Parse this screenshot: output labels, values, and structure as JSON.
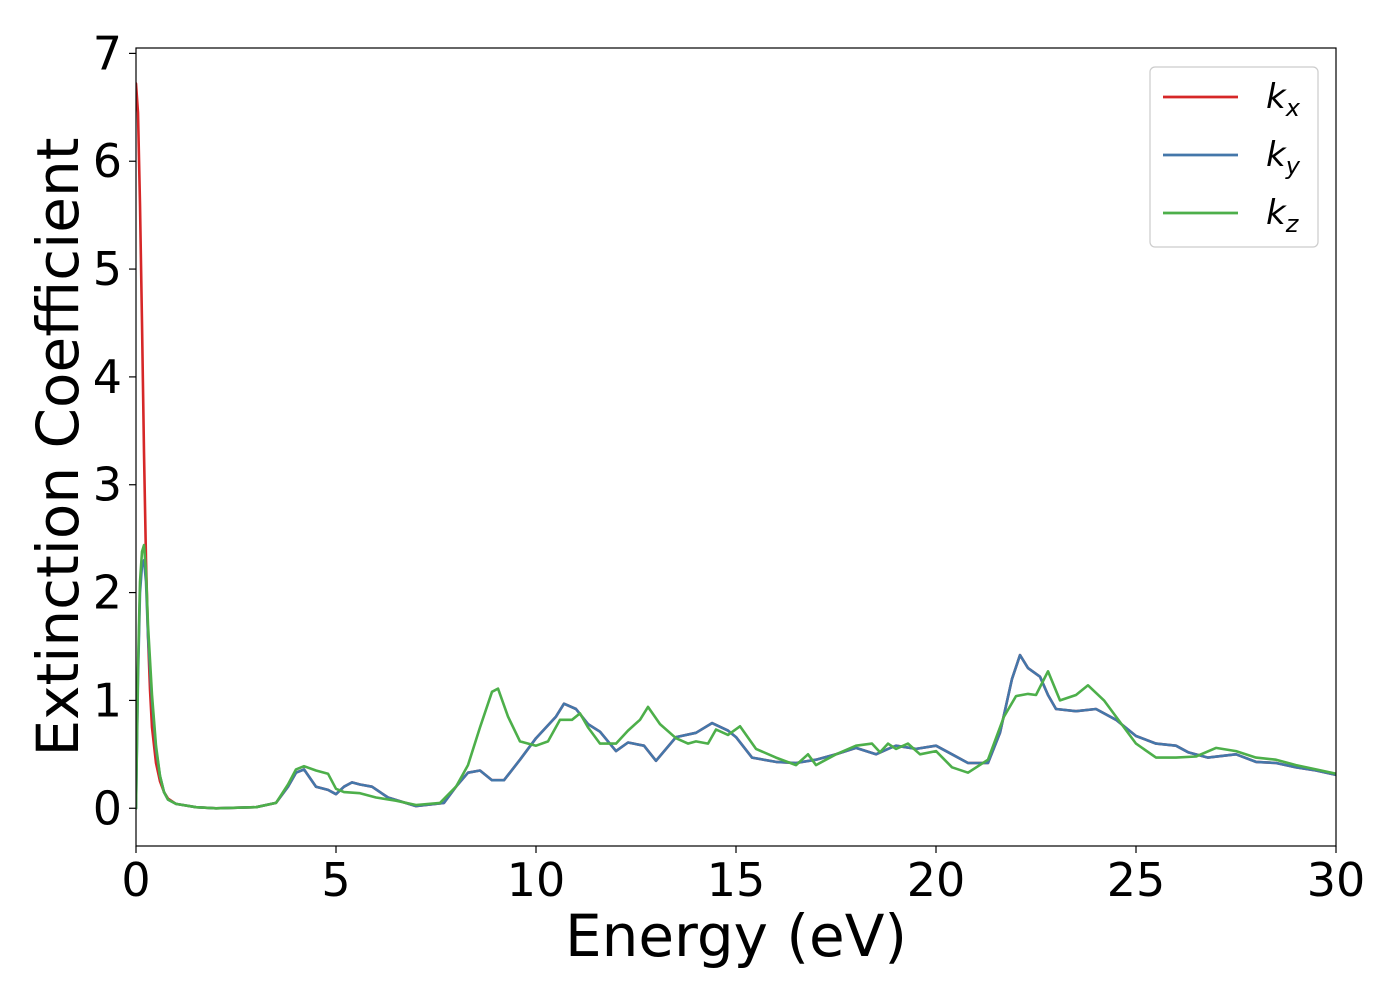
{
  "chart_data": {
    "type": "line",
    "title": "",
    "xlabel": "Energy (eV)",
    "ylabel": "Extinction Coefficient",
    "xlim": [
      0,
      30
    ],
    "ylim": [
      -0.35,
      7.05
    ],
    "xticks": [
      0,
      5,
      10,
      15,
      20,
      25,
      30
    ],
    "yticks": [
      0,
      1,
      2,
      3,
      4,
      5,
      6,
      7
    ],
    "xtick_labels": [
      "0",
      "5",
      "10",
      "15",
      "20",
      "25",
      "30"
    ],
    "ytick_labels": [
      "0",
      "1",
      "2",
      "3",
      "4",
      "5",
      "6",
      "7"
    ],
    "grid": false,
    "legend_position": "top-right",
    "series": [
      {
        "name": "k_x",
        "label_base": "k",
        "label_sub": "x",
        "color": "#d62728",
        "points": [
          [
            0.0,
            6.72
          ],
          [
            0.05,
            6.45
          ],
          [
            0.1,
            5.6
          ],
          [
            0.15,
            4.5
          ],
          [
            0.2,
            3.3
          ],
          [
            0.25,
            2.3
          ],
          [
            0.3,
            1.6
          ],
          [
            0.35,
            1.1
          ],
          [
            0.4,
            0.75
          ],
          [
            0.5,
            0.42
          ],
          [
            0.6,
            0.25
          ],
          [
            0.7,
            0.15
          ],
          [
            0.8,
            0.09
          ],
          [
            1.0,
            0.04
          ],
          [
            1.5,
            0.01
          ],
          [
            2.0,
            0.0
          ],
          [
            3.0,
            0.01
          ],
          [
            3.5,
            0.05
          ],
          [
            3.8,
            0.2
          ],
          [
            4.0,
            0.33
          ],
          [
            4.2,
            0.36
          ],
          [
            4.5,
            0.2
          ],
          [
            4.8,
            0.17
          ],
          [
            5.0,
            0.13
          ],
          [
            5.2,
            0.2
          ],
          [
            5.4,
            0.24
          ],
          [
            5.6,
            0.22
          ],
          [
            5.9,
            0.2
          ],
          [
            6.3,
            0.1
          ],
          [
            7.0,
            0.02
          ],
          [
            7.7,
            0.05
          ],
          [
            8.0,
            0.2
          ],
          [
            8.3,
            0.33
          ],
          [
            8.6,
            0.35
          ],
          [
            8.9,
            0.26
          ],
          [
            9.2,
            0.26
          ],
          [
            9.6,
            0.45
          ],
          [
            10.0,
            0.65
          ],
          [
            10.5,
            0.85
          ],
          [
            10.7,
            0.97
          ],
          [
            11.0,
            0.92
          ],
          [
            11.3,
            0.78
          ],
          [
            11.6,
            0.71
          ],
          [
            12.0,
            0.53
          ],
          [
            12.3,
            0.61
          ],
          [
            12.7,
            0.58
          ],
          [
            13.0,
            0.44
          ],
          [
            13.5,
            0.66
          ],
          [
            14.0,
            0.7
          ],
          [
            14.4,
            0.79
          ],
          [
            14.8,
            0.72
          ],
          [
            15.0,
            0.66
          ],
          [
            15.4,
            0.47
          ],
          [
            16.0,
            0.43
          ],
          [
            16.5,
            0.42
          ],
          [
            17.0,
            0.45
          ],
          [
            17.5,
            0.5
          ],
          [
            18.0,
            0.56
          ],
          [
            18.5,
            0.5
          ],
          [
            18.8,
            0.55
          ],
          [
            19.0,
            0.58
          ],
          [
            19.5,
            0.55
          ],
          [
            20.0,
            0.58
          ],
          [
            20.4,
            0.5
          ],
          [
            20.8,
            0.42
          ],
          [
            21.3,
            0.42
          ],
          [
            21.6,
            0.7
          ],
          [
            21.9,
            1.2
          ],
          [
            22.1,
            1.42
          ],
          [
            22.3,
            1.3
          ],
          [
            22.6,
            1.22
          ],
          [
            22.8,
            1.05
          ],
          [
            23.0,
            0.92
          ],
          [
            23.5,
            0.9
          ],
          [
            24.0,
            0.92
          ],
          [
            24.5,
            0.82
          ],
          [
            25.0,
            0.67
          ],
          [
            25.5,
            0.6
          ],
          [
            26.0,
            0.58
          ],
          [
            26.3,
            0.52
          ],
          [
            26.8,
            0.47
          ],
          [
            27.5,
            0.5
          ],
          [
            28.0,
            0.43
          ],
          [
            28.5,
            0.42
          ],
          [
            29.0,
            0.38
          ],
          [
            29.5,
            0.35
          ],
          [
            30.0,
            0.31
          ]
        ]
      },
      {
        "name": "k_y",
        "label_base": "k",
        "label_sub": "y",
        "color": "#4477aa",
        "points": [
          [
            0.0,
            0.0
          ],
          [
            0.05,
            1.2
          ],
          [
            0.1,
            2.0
          ],
          [
            0.15,
            2.25
          ],
          [
            0.2,
            2.3
          ],
          [
            0.25,
            2.1
          ],
          [
            0.3,
            1.6
          ],
          [
            0.4,
            1.0
          ],
          [
            0.5,
            0.55
          ],
          [
            0.6,
            0.3
          ],
          [
            0.7,
            0.15
          ],
          [
            0.8,
            0.08
          ],
          [
            1.0,
            0.04
          ],
          [
            1.5,
            0.01
          ],
          [
            2.0,
            0.0
          ],
          [
            3.0,
            0.01
          ],
          [
            3.5,
            0.05
          ],
          [
            3.8,
            0.2
          ],
          [
            4.0,
            0.33
          ],
          [
            4.2,
            0.36
          ],
          [
            4.5,
            0.2
          ],
          [
            4.8,
            0.17
          ],
          [
            5.0,
            0.13
          ],
          [
            5.2,
            0.2
          ],
          [
            5.4,
            0.24
          ],
          [
            5.6,
            0.22
          ],
          [
            5.9,
            0.2
          ],
          [
            6.3,
            0.1
          ],
          [
            7.0,
            0.02
          ],
          [
            7.7,
            0.05
          ],
          [
            8.0,
            0.2
          ],
          [
            8.3,
            0.33
          ],
          [
            8.6,
            0.35
          ],
          [
            8.9,
            0.26
          ],
          [
            9.2,
            0.26
          ],
          [
            9.6,
            0.45
          ],
          [
            10.0,
            0.65
          ],
          [
            10.5,
            0.85
          ],
          [
            10.7,
            0.97
          ],
          [
            11.0,
            0.92
          ],
          [
            11.3,
            0.78
          ],
          [
            11.6,
            0.71
          ],
          [
            12.0,
            0.53
          ],
          [
            12.3,
            0.61
          ],
          [
            12.7,
            0.58
          ],
          [
            13.0,
            0.44
          ],
          [
            13.5,
            0.66
          ],
          [
            14.0,
            0.7
          ],
          [
            14.4,
            0.79
          ],
          [
            14.8,
            0.72
          ],
          [
            15.0,
            0.66
          ],
          [
            15.4,
            0.47
          ],
          [
            16.0,
            0.43
          ],
          [
            16.5,
            0.42
          ],
          [
            17.0,
            0.45
          ],
          [
            17.5,
            0.5
          ],
          [
            18.0,
            0.56
          ],
          [
            18.5,
            0.5
          ],
          [
            18.8,
            0.55
          ],
          [
            19.0,
            0.58
          ],
          [
            19.5,
            0.55
          ],
          [
            20.0,
            0.58
          ],
          [
            20.4,
            0.5
          ],
          [
            20.8,
            0.42
          ],
          [
            21.3,
            0.42
          ],
          [
            21.6,
            0.7
          ],
          [
            21.9,
            1.2
          ],
          [
            22.1,
            1.42
          ],
          [
            22.3,
            1.3
          ],
          [
            22.6,
            1.22
          ],
          [
            22.8,
            1.05
          ],
          [
            23.0,
            0.92
          ],
          [
            23.5,
            0.9
          ],
          [
            24.0,
            0.92
          ],
          [
            24.5,
            0.82
          ],
          [
            25.0,
            0.67
          ],
          [
            25.5,
            0.6
          ],
          [
            26.0,
            0.58
          ],
          [
            26.3,
            0.52
          ],
          [
            26.8,
            0.47
          ],
          [
            27.5,
            0.5
          ],
          [
            28.0,
            0.43
          ],
          [
            28.5,
            0.42
          ],
          [
            29.0,
            0.38
          ],
          [
            29.5,
            0.35
          ],
          [
            30.0,
            0.31
          ]
        ]
      },
      {
        "name": "k_z",
        "label_base": "k",
        "label_sub": "z",
        "color": "#4daf4a",
        "points": [
          [
            0.0,
            0.0
          ],
          [
            0.05,
            1.3
          ],
          [
            0.1,
            2.1
          ],
          [
            0.15,
            2.38
          ],
          [
            0.2,
            2.44
          ],
          [
            0.25,
            2.2
          ],
          [
            0.3,
            1.7
          ],
          [
            0.4,
            1.05
          ],
          [
            0.5,
            0.58
          ],
          [
            0.6,
            0.3
          ],
          [
            0.7,
            0.15
          ],
          [
            0.8,
            0.08
          ],
          [
            1.0,
            0.04
          ],
          [
            1.5,
            0.01
          ],
          [
            2.0,
            0.0
          ],
          [
            3.0,
            0.01
          ],
          [
            3.5,
            0.05
          ],
          [
            3.8,
            0.22
          ],
          [
            4.0,
            0.36
          ],
          [
            4.2,
            0.39
          ],
          [
            4.5,
            0.35
          ],
          [
            4.8,
            0.32
          ],
          [
            5.0,
            0.18
          ],
          [
            5.2,
            0.15
          ],
          [
            5.6,
            0.14
          ],
          [
            6.0,
            0.1
          ],
          [
            6.5,
            0.07
          ],
          [
            7.0,
            0.03
          ],
          [
            7.6,
            0.05
          ],
          [
            8.0,
            0.2
          ],
          [
            8.3,
            0.4
          ],
          [
            8.6,
            0.75
          ],
          [
            8.9,
            1.08
          ],
          [
            9.05,
            1.11
          ],
          [
            9.3,
            0.85
          ],
          [
            9.6,
            0.62
          ],
          [
            10.0,
            0.58
          ],
          [
            10.3,
            0.62
          ],
          [
            10.6,
            0.82
          ],
          [
            10.9,
            0.82
          ],
          [
            11.1,
            0.88
          ],
          [
            11.3,
            0.75
          ],
          [
            11.6,
            0.6
          ],
          [
            12.0,
            0.6
          ],
          [
            12.3,
            0.72
          ],
          [
            12.6,
            0.82
          ],
          [
            12.8,
            0.94
          ],
          [
            13.1,
            0.78
          ],
          [
            13.5,
            0.65
          ],
          [
            13.8,
            0.6
          ],
          [
            14.0,
            0.62
          ],
          [
            14.3,
            0.6
          ],
          [
            14.5,
            0.73
          ],
          [
            14.8,
            0.68
          ],
          [
            15.1,
            0.76
          ],
          [
            15.5,
            0.55
          ],
          [
            16.0,
            0.47
          ],
          [
            16.5,
            0.4
          ],
          [
            16.8,
            0.5
          ],
          [
            17.0,
            0.4
          ],
          [
            17.5,
            0.5
          ],
          [
            18.0,
            0.58
          ],
          [
            18.4,
            0.6
          ],
          [
            18.6,
            0.52
          ],
          [
            18.8,
            0.6
          ],
          [
            19.0,
            0.55
          ],
          [
            19.3,
            0.6
          ],
          [
            19.6,
            0.5
          ],
          [
            20.0,
            0.53
          ],
          [
            20.4,
            0.38
          ],
          [
            20.8,
            0.33
          ],
          [
            21.3,
            0.45
          ],
          [
            21.7,
            0.85
          ],
          [
            22.0,
            1.04
          ],
          [
            22.3,
            1.06
          ],
          [
            22.5,
            1.05
          ],
          [
            22.8,
            1.27
          ],
          [
            23.1,
            1.0
          ],
          [
            23.5,
            1.05
          ],
          [
            23.8,
            1.14
          ],
          [
            24.2,
            1.0
          ],
          [
            24.5,
            0.85
          ],
          [
            25.0,
            0.6
          ],
          [
            25.5,
            0.47
          ],
          [
            26.0,
            0.47
          ],
          [
            26.5,
            0.48
          ],
          [
            27.0,
            0.56
          ],
          [
            27.5,
            0.53
          ],
          [
            28.0,
            0.47
          ],
          [
            28.5,
            0.45
          ],
          [
            29.0,
            0.4
          ],
          [
            29.5,
            0.36
          ],
          [
            30.0,
            0.32
          ]
        ]
      }
    ]
  }
}
